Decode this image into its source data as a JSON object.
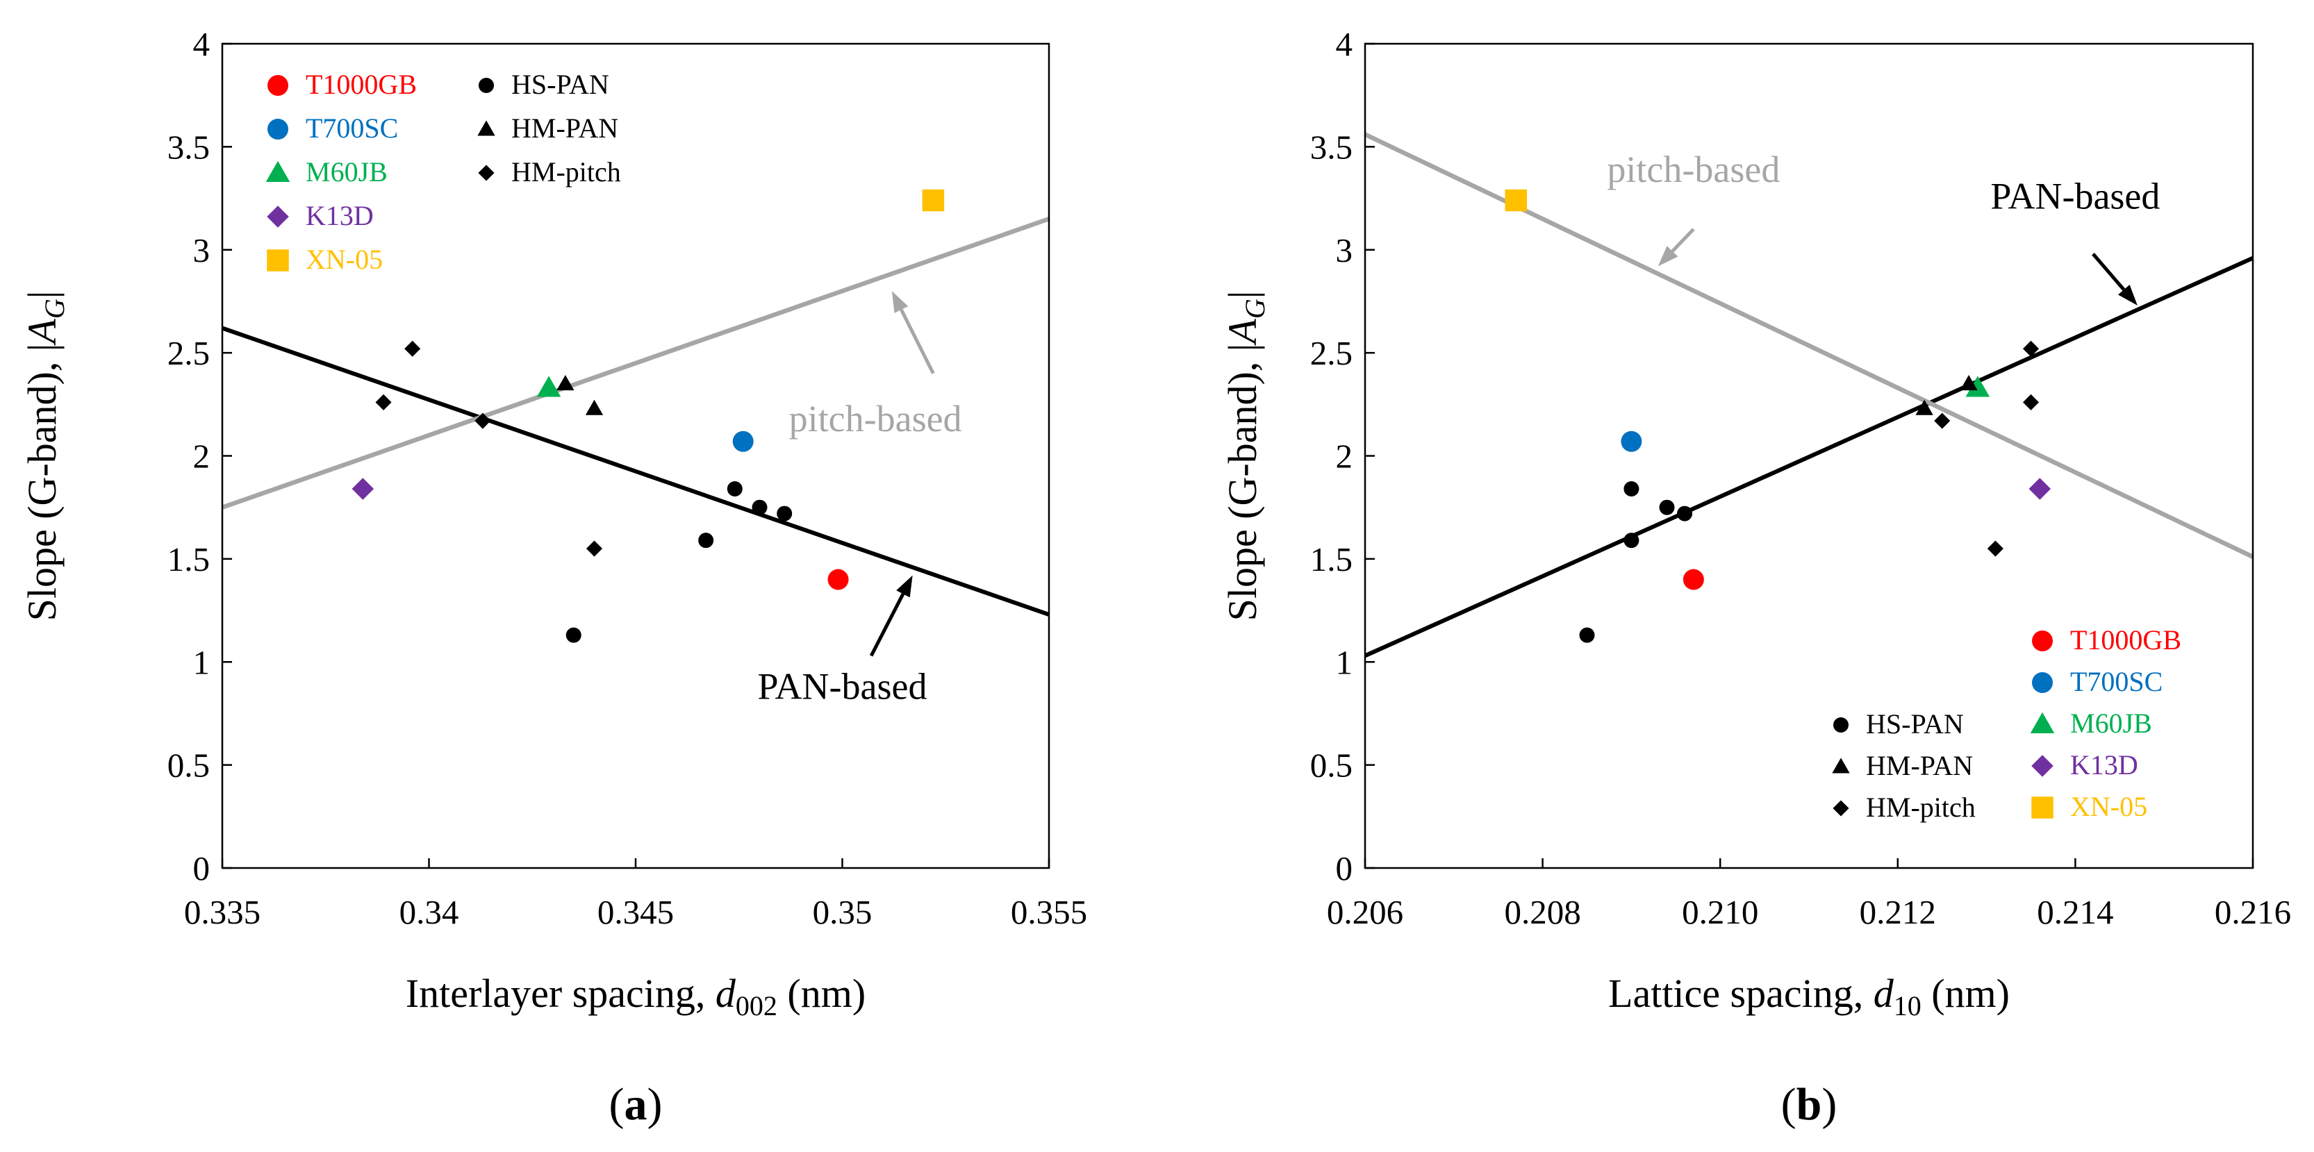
{
  "colors": {
    "T1000GB": "#ff0000",
    "T700SC": "#0070c0",
    "M60JB": "#00b050",
    "K13D": "#7030a0",
    "XN-05": "#ffc000",
    "generic": "#000000",
    "pan_line": "#000000",
    "pitch_line": "#a6a6a6"
  },
  "chart_data": [
    {
      "id": "a",
      "type": "scatter",
      "caption": "(a)",
      "ylabel": "Slope (G-band), |A_G|",
      "ylabel_prefix": "Slope (G-band), |",
      "ylabel_symbol": "A",
      "ylabel_sub": "G",
      "ylabel_suffix": "|",
      "xlabel": "Interlayer spacing, d002 (nm)",
      "xlabel_prefix": "Interlayer spacing, ",
      "xlabel_symbol": "d",
      "xlabel_sub": "002",
      "xlabel_suffix": " (nm)",
      "xlim": [
        0.335,
        0.355
      ],
      "ylim": [
        0,
        4
      ],
      "xticks": [
        "0.335",
        "0.34",
        "0.345",
        "0.35",
        "0.355"
      ],
      "xtick_values": [
        0.335,
        0.34,
        0.345,
        0.35,
        0.355
      ],
      "yticks": [
        "0",
        "0.5",
        "1",
        "1.5",
        "2",
        "2.5",
        "3",
        "3.5",
        "4"
      ],
      "ytick_values": [
        0,
        0.5,
        1,
        1.5,
        2,
        2.5,
        3,
        3.5,
        4
      ],
      "legend_position": "top-left",
      "legend_named": [
        "T1000GB",
        "T700SC",
        "M60JB",
        "K13D",
        "XN-05"
      ],
      "legend_generic": [
        "HS-PAN",
        "HM-PAN",
        "HM-pitch"
      ],
      "series": [
        {
          "name": "T1000GB",
          "marker": "circle",
          "color": "#ff0000",
          "points": [
            [
              0.3499,
              1.4
            ]
          ]
        },
        {
          "name": "T700SC",
          "marker": "circle",
          "color": "#0070c0",
          "points": [
            [
              0.3476,
              2.07
            ]
          ]
        },
        {
          "name": "M60JB",
          "marker": "triangle",
          "color": "#00b050",
          "points": [
            [
              0.3429,
              2.33
            ]
          ]
        },
        {
          "name": "K13D",
          "marker": "diamond",
          "color": "#7030a0",
          "points": [
            [
              0.3384,
              1.84
            ]
          ]
        },
        {
          "name": "XN-05",
          "marker": "square",
          "color": "#ffc000",
          "points": [
            [
              0.3522,
              3.24
            ]
          ]
        },
        {
          "name": "HS-PAN",
          "marker": "circle",
          "color": "#000000",
          "points": [
            [
              0.3435,
              1.13
            ],
            [
              0.3467,
              1.59
            ],
            [
              0.3474,
              1.84
            ],
            [
              0.348,
              1.75
            ],
            [
              0.3486,
              1.72
            ]
          ]
        },
        {
          "name": "HM-PAN",
          "marker": "triangle",
          "color": "#000000",
          "points": [
            [
              0.3433,
              2.35
            ],
            [
              0.344,
              2.23
            ]
          ]
        },
        {
          "name": "HM-pitch",
          "marker": "diamond",
          "color": "#000000",
          "points": [
            [
              0.3389,
              2.26
            ],
            [
              0.3396,
              2.52
            ],
            [
              0.3413,
              2.17
            ],
            [
              0.344,
              1.55
            ]
          ]
        }
      ],
      "lines": [
        {
          "name": "PAN-based",
          "color": "#000000",
          "points": [
            [
              0.335,
              2.62
            ],
            [
              0.355,
              1.23
            ]
          ]
        },
        {
          "name": "pitch-based",
          "color": "#a6a6a6",
          "points": [
            [
              0.335,
              1.75
            ],
            [
              0.355,
              3.15
            ]
          ]
        }
      ],
      "annotations": [
        {
          "text": "PAN-based",
          "color": "#000000",
          "text_at": [
            0.35,
            0.82
          ],
          "arrow_from": [
            0.3507,
            1.03
          ],
          "arrow_to": [
            0.3517,
            1.42
          ]
        },
        {
          "text": "pitch-based",
          "color": "#a6a6a6",
          "text_at": [
            0.3508,
            2.12
          ],
          "arrow_from": [
            0.3522,
            2.4
          ],
          "arrow_to": [
            0.3512,
            2.8
          ]
        }
      ]
    },
    {
      "id": "b",
      "type": "scatter",
      "caption": "(b)",
      "ylabel": "Slope (G-band), |A_G|",
      "ylabel_prefix": "Slope (G-band), |",
      "ylabel_symbol": "A",
      "ylabel_sub": "G",
      "ylabel_suffix": "|",
      "xlabel": "Lattice spacing, d10 (nm)",
      "xlabel_prefix": "Lattice spacing, ",
      "xlabel_symbol": "d",
      "xlabel_sub": "10",
      "xlabel_suffix": " (nm)",
      "xlim": [
        0.206,
        0.216
      ],
      "ylim": [
        0,
        4
      ],
      "xticks": [
        "0.206",
        "0.208",
        "0.210",
        "0.212",
        "0.214",
        "0.216"
      ],
      "xtick_values": [
        0.206,
        0.208,
        0.21,
        0.212,
        0.214,
        0.216
      ],
      "yticks": [
        "0",
        "0.5",
        "1",
        "1.5",
        "2",
        "2.5",
        "3",
        "3.5",
        "4"
      ],
      "ytick_values": [
        0,
        0.5,
        1,
        1.5,
        2,
        2.5,
        3,
        3.5,
        4
      ],
      "legend_position": "bottom-right",
      "legend_named": [
        "T1000GB",
        "T700SC",
        "M60JB",
        "K13D",
        "XN-05"
      ],
      "legend_generic": [
        "HS-PAN",
        "HM-PAN",
        "HM-pitch"
      ],
      "series": [
        {
          "name": "T1000GB",
          "marker": "circle",
          "color": "#ff0000",
          "points": [
            [
              0.2097,
              1.4
            ]
          ]
        },
        {
          "name": "T700SC",
          "marker": "circle",
          "color": "#0070c0",
          "points": [
            [
              0.209,
              2.07
            ]
          ]
        },
        {
          "name": "M60JB",
          "marker": "triangle",
          "color": "#00b050",
          "points": [
            [
              0.2129,
              2.33
            ]
          ]
        },
        {
          "name": "K13D",
          "marker": "diamond",
          "color": "#7030a0",
          "points": [
            [
              0.2136,
              1.84
            ]
          ]
        },
        {
          "name": "XN-05",
          "marker": "square",
          "color": "#ffc000",
          "points": [
            [
              0.2077,
              3.24
            ]
          ]
        },
        {
          "name": "HS-PAN",
          "marker": "circle",
          "color": "#000000",
          "points": [
            [
              0.2085,
              1.13
            ],
            [
              0.209,
              1.59
            ],
            [
              0.209,
              1.84
            ],
            [
              0.2094,
              1.75
            ],
            [
              0.2096,
              1.72
            ]
          ]
        },
        {
          "name": "HM-PAN",
          "marker": "triangle",
          "color": "#000000",
          "points": [
            [
              0.2123,
              2.23
            ],
            [
              0.2128,
              2.35
            ]
          ]
        },
        {
          "name": "HM-pitch",
          "marker": "diamond",
          "color": "#000000",
          "points": [
            [
              0.2125,
              2.17
            ],
            [
              0.2131,
              1.55
            ],
            [
              0.2135,
              2.26
            ],
            [
              0.2135,
              2.52
            ]
          ]
        }
      ],
      "lines": [
        {
          "name": "PAN-based",
          "color": "#000000",
          "points": [
            [
              0.206,
              1.03
            ],
            [
              0.216,
              2.96
            ]
          ]
        },
        {
          "name": "pitch-based",
          "color": "#a6a6a6",
          "points": [
            [
              0.206,
              3.56
            ],
            [
              0.216,
              1.51
            ]
          ]
        }
      ],
      "annotations": [
        {
          "text": "PAN-based",
          "color": "#000000",
          "text_at": [
            0.214,
            3.2
          ],
          "arrow_from": [
            0.2142,
            2.98
          ],
          "arrow_to": [
            0.2147,
            2.73
          ]
        },
        {
          "text": "pitch-based",
          "color": "#a6a6a6",
          "text_at": [
            0.2097,
            3.33
          ],
          "arrow_from": [
            0.2097,
            3.1
          ],
          "arrow_to": [
            0.2093,
            2.92
          ]
        }
      ]
    }
  ]
}
